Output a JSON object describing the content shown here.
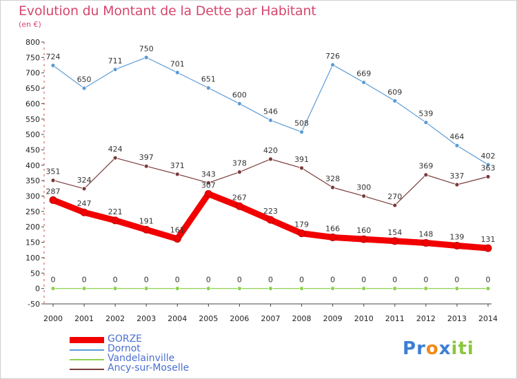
{
  "header": {
    "title": "Evolution du Montant de la Dette par Habitant",
    "unit": "(en €)"
  },
  "chart_data": {
    "type": "line",
    "title": "Evolution du Montant de la Dette par Habitant",
    "subtitle": "(en €)",
    "xlabel": "",
    "ylabel": "",
    "ylim": [
      -50,
      800
    ],
    "yticks": [
      -50,
      0,
      50,
      100,
      150,
      200,
      250,
      300,
      350,
      400,
      450,
      500,
      550,
      600,
      650,
      700,
      750,
      800
    ],
    "grid": false,
    "legend_position": "bottom-left",
    "x": [
      "2000",
      "2001",
      "2002",
      "2003",
      "2004",
      "2005",
      "2006",
      "2007",
      "2008",
      "2009",
      "2010",
      "2011",
      "2012",
      "2013",
      "2014"
    ],
    "series": [
      {
        "name": "Dornot",
        "color": "#5b9bd5",
        "values": [
          724,
          650,
          711,
          750,
          701,
          651,
          600,
          546,
          508,
          726,
          669,
          609,
          539,
          464,
          402
        ]
      },
      {
        "name": "Ancy-sur-Moselle",
        "color": "#7a3a3a",
        "values": [
          351,
          324,
          424,
          397,
          371,
          343,
          378,
          420,
          391,
          328,
          300,
          270,
          369,
          337,
          363
        ]
      },
      {
        "name": "GORZE",
        "color": "#f20000",
        "values": [
          287,
          247,
          221,
          191,
          161,
          307,
          267,
          223,
          179,
          166,
          160,
          154,
          148,
          139,
          131
        ]
      },
      {
        "name": "Vandelainville",
        "color": "#8fd14f",
        "values": [
          0,
          0,
          0,
          0,
          0,
          0,
          0,
          0,
          0,
          0,
          0,
          0,
          0,
          0,
          0
        ]
      }
    ]
  },
  "legend": {
    "items": [
      {
        "label": "GORZE",
        "color": "#f20000",
        "thickness": "thick"
      },
      {
        "label": "Dornot",
        "color": "#5b9bd5",
        "thickness": "thin"
      },
      {
        "label": "Vandelainville",
        "color": "#8fd14f",
        "thickness": "thin"
      },
      {
        "label": "Ancy-sur-Moselle",
        "color": "#7a3a3a",
        "thickness": "thin"
      }
    ]
  },
  "logo": {
    "letters": [
      "P",
      "r",
      "o",
      "x",
      "i",
      "t",
      "i"
    ],
    "colors": [
      "#3b7fd4",
      "#3b7fd4",
      "#f08a1c",
      "#3b7fd4",
      "#8cc63f",
      "#8cc63f",
      "#8cc63f"
    ]
  }
}
